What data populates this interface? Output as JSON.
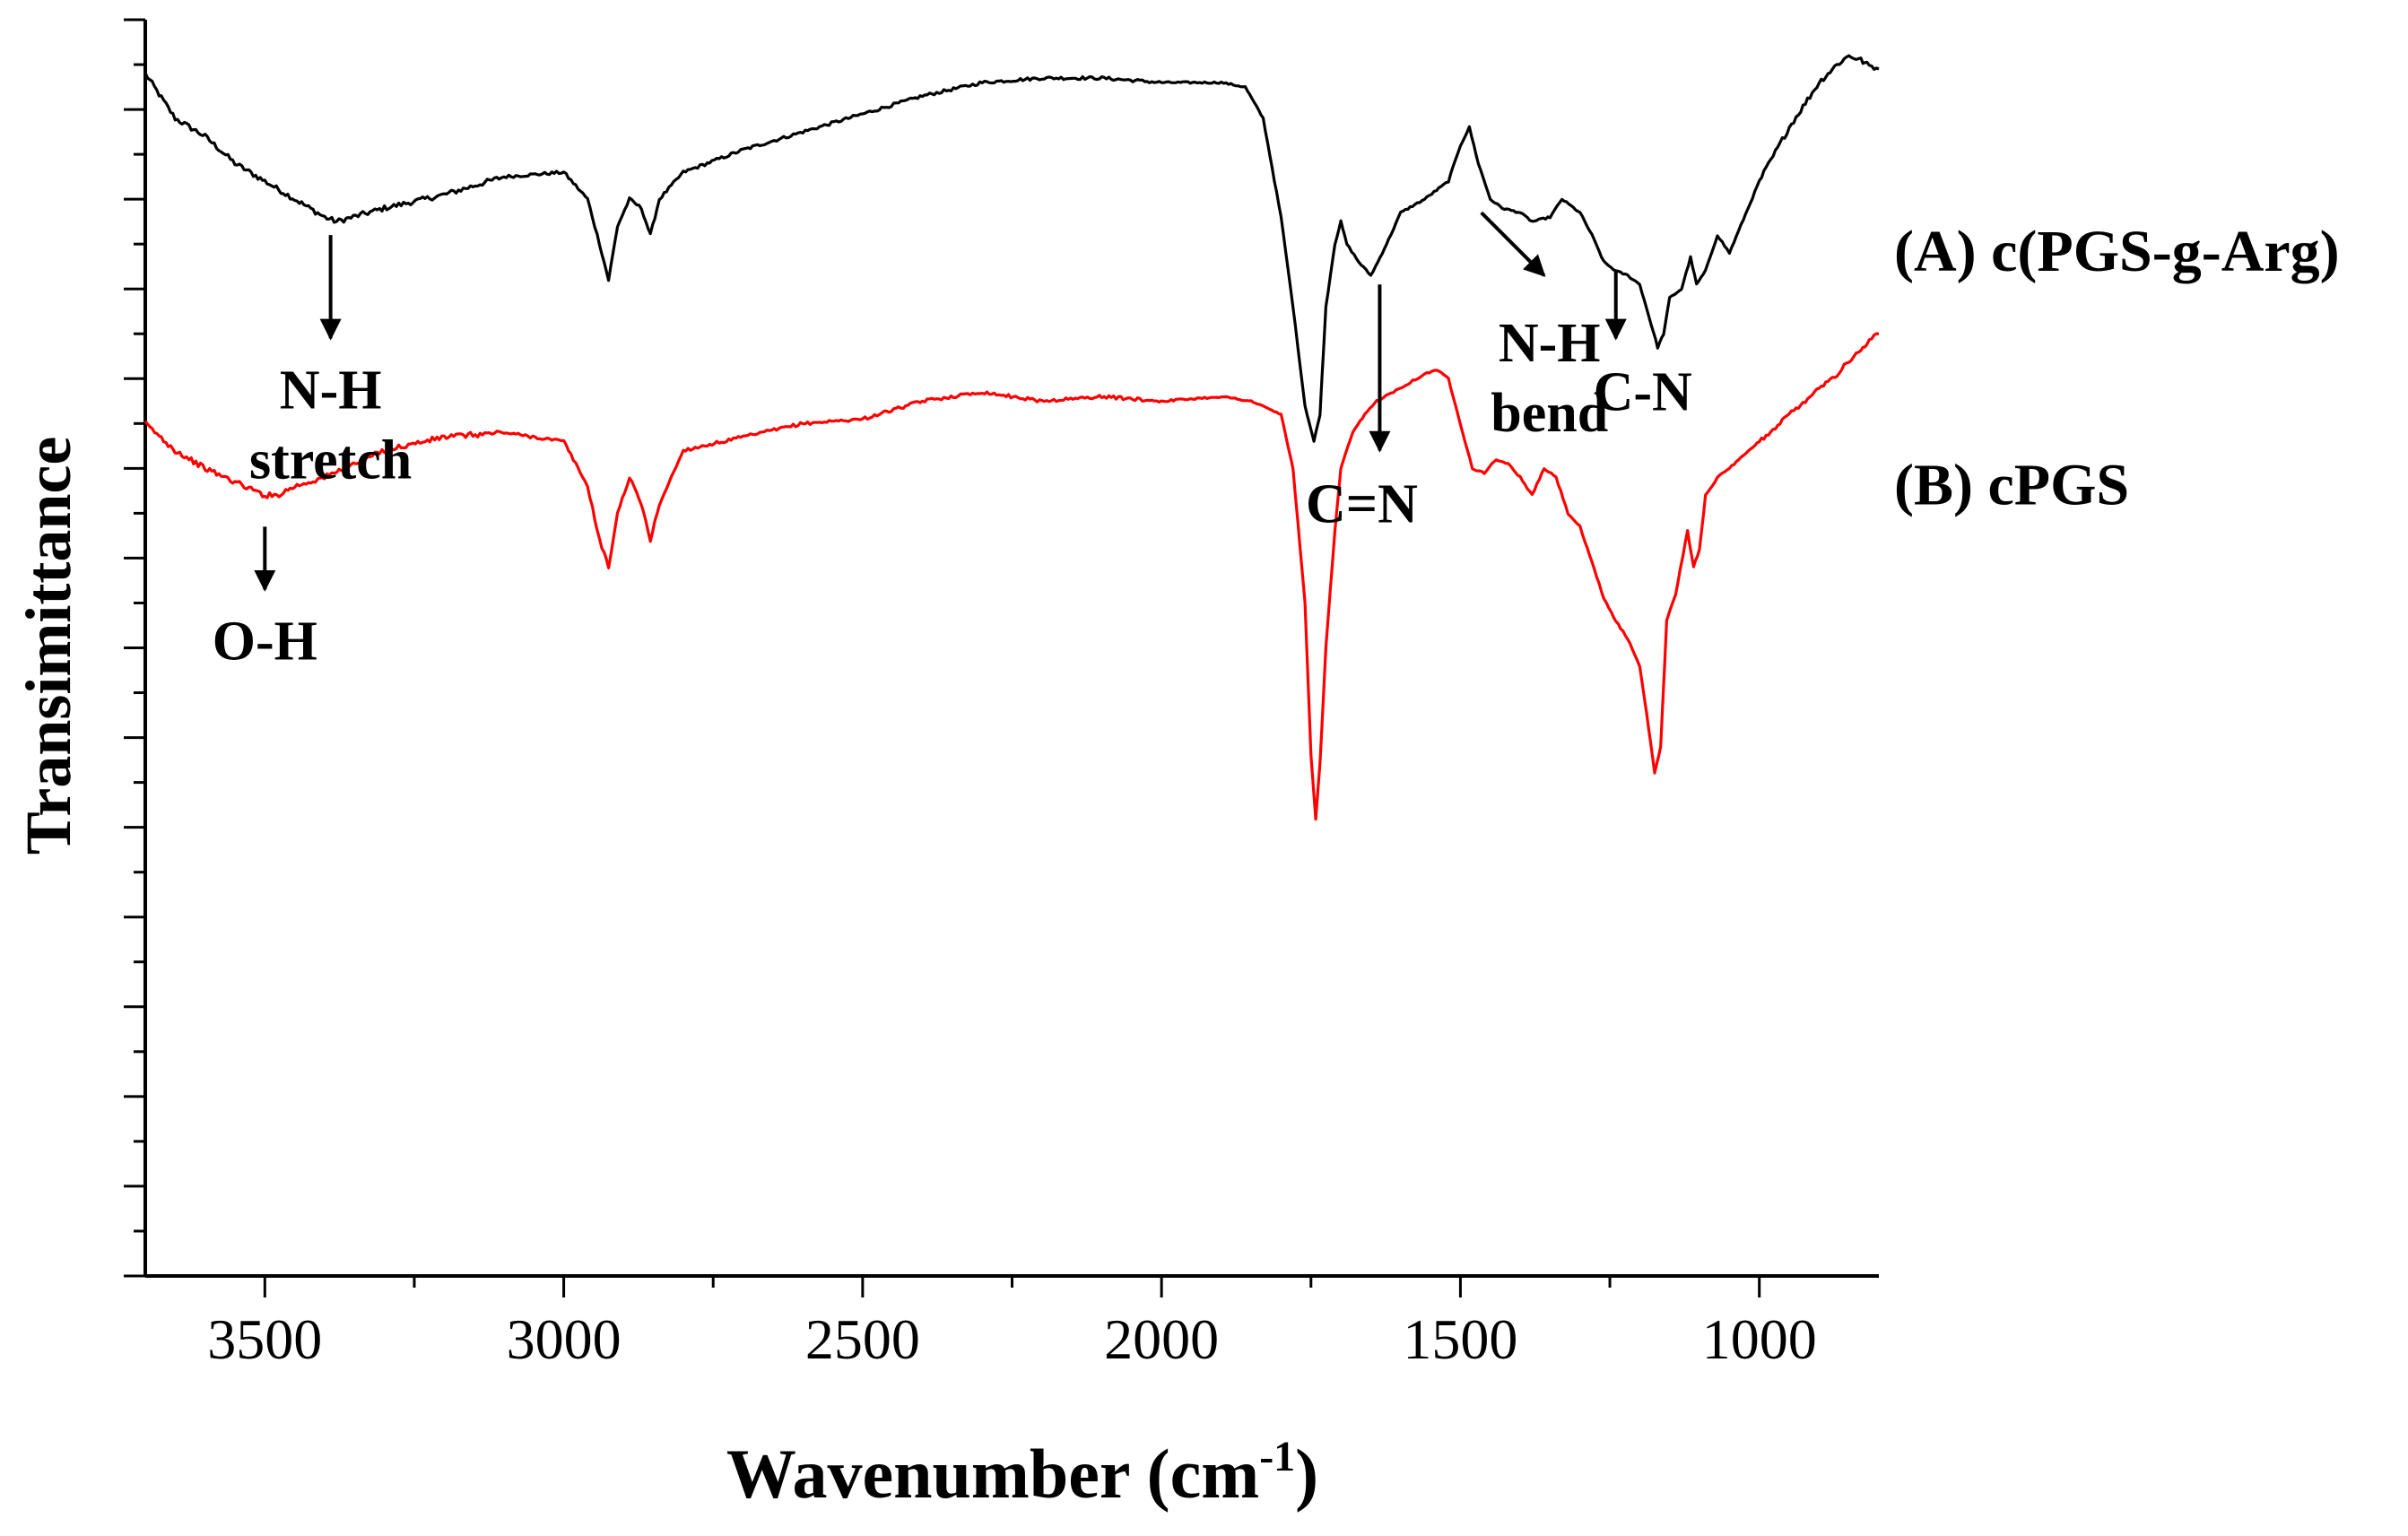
{
  "chart_data": {
    "type": "line",
    "title": "",
    "xlabel": "Wavenumber (cm",
    "xlabel_sup": "-1",
    "xlabel_tail": ")",
    "ylabel": "Transimittance",
    "xlim": [
      3700,
      800
    ],
    "x_reversed": true,
    "ylim": [
      0,
      14
    ],
    "y_ticks_labeled": false,
    "x_ticks": [
      3500,
      3000,
      2500,
      2000,
      1500,
      1000
    ],
    "x_tick_labels": [
      "3500",
      "3000",
      "2500",
      "2000",
      "1500",
      "1000"
    ],
    "series": [
      {
        "name": "(A) c(PGS-g-Arg)",
        "color": "#000000",
        "x": [
          3700,
          3650,
          3600,
          3550,
          3500,
          3450,
          3400,
          3380,
          3300,
          3200,
          3100,
          3000,
          2960,
          2940,
          2925,
          2910,
          2890,
          2870,
          2855,
          2840,
          2800,
          2700,
          2600,
          2500,
          2400,
          2300,
          2200,
          2100,
          2000,
          1900,
          1860,
          1830,
          1800,
          1780,
          1760,
          1745,
          1735,
          1725,
          1710,
          1700,
          1690,
          1670,
          1650,
          1638,
          1620,
          1600,
          1560,
          1520,
          1500,
          1485,
          1470,
          1450,
          1430,
          1400,
          1380,
          1350,
          1330,
          1300,
          1280,
          1260,
          1240,
          1220,
          1200,
          1185,
          1170,
          1160,
          1150,
          1130,
          1115,
          1105,
          1090,
          1070,
          1050,
          1000,
          950,
          900,
          870,
          850,
          830,
          820,
          800
        ],
        "y": [
          13.4,
          12.9,
          12.7,
          12.4,
          12.2,
          12.0,
          11.8,
          11.75,
          11.9,
          12.05,
          12.25,
          12.3,
          12.0,
          11.5,
          11.1,
          11.7,
          12.0,
          11.9,
          11.6,
          12.0,
          12.3,
          12.55,
          12.75,
          12.95,
          13.15,
          13.3,
          13.35,
          13.35,
          13.3,
          13.3,
          13.25,
          12.9,
          11.8,
          10.8,
          9.7,
          9.3,
          9.6,
          10.8,
          11.5,
          11.75,
          11.5,
          11.3,
          11.15,
          11.3,
          11.55,
          11.85,
          12.0,
          12.2,
          12.6,
          12.8,
          12.4,
          12.0,
          11.9,
          11.85,
          11.75,
          11.8,
          12.0,
          11.85,
          11.6,
          11.3,
          11.2,
          11.15,
          11.05,
          10.7,
          10.35,
          10.5,
          10.9,
          11.0,
          11.35,
          11.05,
          11.2,
          11.6,
          11.4,
          12.2,
          12.8,
          13.3,
          13.5,
          13.6,
          13.55,
          13.5,
          13.45
        ]
      },
      {
        "name": "(B) cPGS",
        "color": "#ff0000",
        "x": [
          3700,
          3650,
          3600,
          3550,
          3500,
          3480,
          3450,
          3400,
          3300,
          3200,
          3100,
          3000,
          2960,
          2940,
          2925,
          2910,
          2890,
          2870,
          2855,
          2840,
          2800,
          2700,
          2600,
          2500,
          2400,
          2300,
          2200,
          2100,
          2000,
          1900,
          1850,
          1800,
          1780,
          1760,
          1750,
          1742,
          1735,
          1725,
          1710,
          1700,
          1680,
          1660,
          1640,
          1600,
          1560,
          1540,
          1520,
          1500,
          1480,
          1460,
          1440,
          1420,
          1400,
          1380,
          1360,
          1340,
          1320,
          1300,
          1280,
          1260,
          1240,
          1220,
          1200,
          1185,
          1175,
          1165,
          1155,
          1140,
          1120,
          1110,
          1100,
          1090,
          1070,
          1050,
          1000,
          950,
          900,
          870,
          850,
          830,
          820,
          800
        ],
        "y": [
          9.5,
          9.2,
          9.0,
          8.85,
          8.7,
          8.7,
          8.8,
          8.9,
          9.2,
          9.35,
          9.4,
          9.3,
          8.8,
          8.2,
          7.9,
          8.5,
          8.9,
          8.6,
          8.2,
          8.6,
          9.2,
          9.35,
          9.5,
          9.55,
          9.75,
          9.85,
          9.75,
          9.8,
          9.75,
          9.8,
          9.75,
          9.6,
          9.0,
          7.5,
          5.8,
          5.1,
          5.7,
          7.0,
          8.3,
          9.0,
          9.4,
          9.6,
          9.75,
          9.9,
          10.05,
          10.1,
          10.0,
          9.5,
          9.0,
          8.95,
          9.1,
          9.05,
          8.9,
          8.7,
          9.0,
          8.9,
          8.5,
          8.35,
          7.95,
          7.55,
          7.3,
          7.1,
          6.8,
          6.1,
          5.6,
          5.9,
          7.3,
          7.6,
          8.3,
          7.9,
          8.1,
          8.7,
          8.9,
          9.0,
          9.3,
          9.6,
          9.9,
          10.05,
          10.2,
          10.3,
          10.4,
          10.5
        ]
      }
    ],
    "legend_labels": [
      {
        "text": "(A) c(PGS-g-Arg)",
        "series": 0
      },
      {
        "text": "(B) cPGS",
        "series": 1
      }
    ],
    "annotations": [
      {
        "lines": [
          "N-H",
          "stretch"
        ],
        "arrow_from": [
          3390,
          11.6
        ],
        "arrow_to": [
          3390,
          10.45
        ]
      },
      {
        "lines": [
          "C=N"
        ],
        "arrow_from": [
          1635,
          11.05
        ],
        "arrow_to": [
          1635,
          9.2
        ]
      },
      {
        "lines": [
          "N-H",
          "bend"
        ],
        "arrow_from": [
          1465,
          11.85
        ],
        "arrow_to": [
          1360,
          11.15
        ]
      },
      {
        "lines": [
          "C-N"
        ],
        "arrow_from": [
          1240,
          11.2
        ],
        "arrow_to": [
          1240,
          10.45
        ]
      },
      {
        "lines": [
          "O-H"
        ],
        "arrow_from": [
          3500,
          8.35
        ],
        "arrow_to": [
          3500,
          7.65
        ]
      }
    ]
  }
}
